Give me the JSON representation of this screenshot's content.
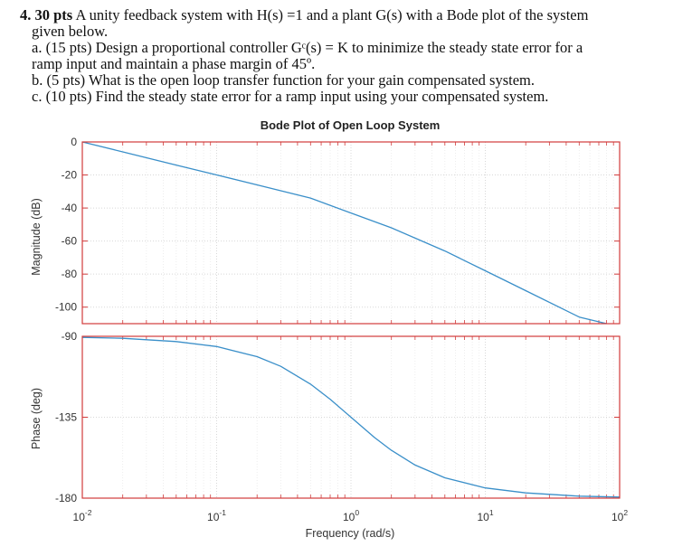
{
  "problem": {
    "number": "4.",
    "points": "30 pts",
    "intro_line1": "A unity feedback system with H(s) =1 and a plant G(s) with a Bode plot of the system",
    "intro_line2": "given below.",
    "part_a_line1": "a. (15 pts) Design a proportional controller Gᶜ(s) = K to minimize the steady state error for a",
    "part_a_line2": "ramp input and maintain a phase margin of 45º.",
    "part_b": "b. (5 pts) What is the open loop transfer function for your gain compensated system.",
    "part_c": "c. (10 pts) Find the steady state error for a ramp input using your compensated system."
  },
  "chart_data": {
    "type": "line",
    "title": "Bode Plot of Open Loop System",
    "xlabel": "Frequency (rad/s)",
    "xscale": "log",
    "xlim": [
      0.01,
      100
    ],
    "x_ticks": [
      {
        "base": "10",
        "exp": "-2",
        "value": 0.01
      },
      {
        "base": "10",
        "exp": "-1",
        "value": 0.1
      },
      {
        "base": "10",
        "exp": "0",
        "value": 1
      },
      {
        "base": "10",
        "exp": "1",
        "value": 10
      },
      {
        "base": "10",
        "exp": "2",
        "value": 100
      }
    ],
    "grid": true,
    "line_color": "#3a8fc9",
    "frame_color": "#d23b3b",
    "subplots": [
      {
        "name": "magnitude",
        "ylabel": "Magnitude (dB)",
        "ylim": [
          -110,
          0
        ],
        "y_ticks": [
          "0",
          "-20",
          "-40",
          "-60",
          "-80",
          "-100"
        ],
        "y_tick_values": [
          0,
          -20,
          -40,
          -60,
          -80,
          -100
        ],
        "x": [
          0.01,
          0.02,
          0.05,
          0.1,
          0.2,
          0.5,
          1,
          2,
          5,
          10,
          20,
          50,
          80
        ],
        "y": [
          0,
          -6,
          -14,
          -20,
          -26,
          -34,
          -43,
          -52,
          -66,
          -78,
          -90,
          -106,
          -112
        ]
      },
      {
        "name": "phase",
        "ylabel": "Phase (deg)",
        "ylim": [
          -180,
          -90
        ],
        "y_ticks": [
          "-90",
          "-135",
          "-180"
        ],
        "y_tick_values": [
          -90,
          -135,
          -180
        ],
        "x": [
          0.01,
          0.02,
          0.05,
          0.1,
          0.2,
          0.3,
          0.5,
          0.7,
          1,
          1.5,
          2,
          3,
          5,
          10,
          20,
          50,
          100
        ],
        "y": [
          -90.6,
          -91.1,
          -92.9,
          -95.7,
          -101.3,
          -106.7,
          -116.6,
          -125,
          -135,
          -146.3,
          -153.4,
          -161.6,
          -168.7,
          -174.3,
          -177.1,
          -178.9,
          -179.4
        ]
      }
    ]
  }
}
